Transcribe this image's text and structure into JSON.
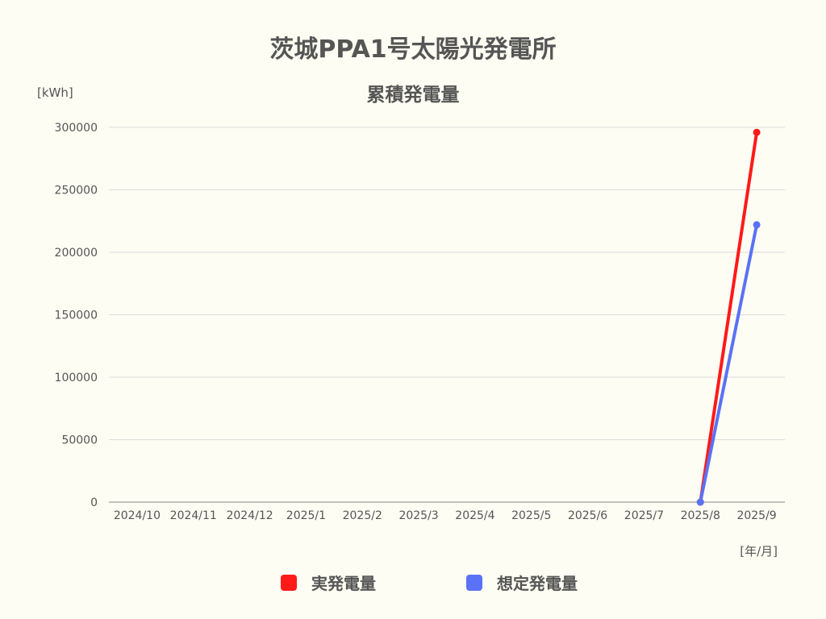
{
  "chart_data": {
    "type": "line",
    "title": "茨城PPA1号太陽光発電所",
    "subtitle": "累積発電量",
    "ylabel": "[kWh]",
    "xlabel": "[年/月]",
    "categories": [
      "2024/10",
      "2024/11",
      "2024/12",
      "2025/1",
      "2025/2",
      "2025/3",
      "2025/4",
      "2025/5",
      "2025/6",
      "2025/7",
      "2025/8",
      "2025/9"
    ],
    "ylim": [
      0,
      300000
    ],
    "yticks": [
      "0",
      "50000",
      "100000",
      "150000",
      "200000",
      "250000",
      "300000"
    ],
    "grid": true,
    "legend_position": "bottom",
    "series": [
      {
        "name": "実発電量",
        "color": "#ff1a1a",
        "values": [
          null,
          null,
          null,
          null,
          null,
          null,
          null,
          null,
          null,
          null,
          0,
          296000
        ]
      },
      {
        "name": "想定発電量",
        "color": "#5a72f5",
        "values": [
          null,
          null,
          null,
          null,
          null,
          null,
          null,
          null,
          null,
          null,
          0,
          222000
        ]
      }
    ]
  }
}
